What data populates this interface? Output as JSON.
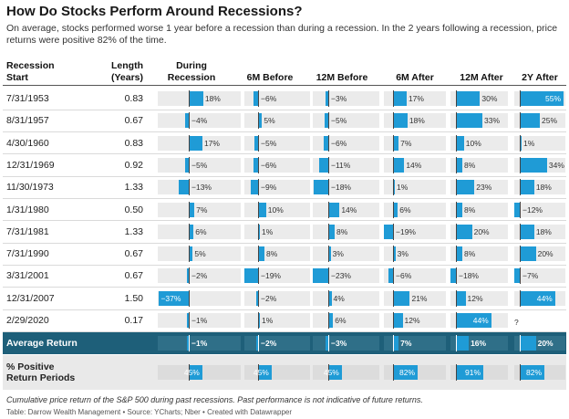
{
  "title": "How Do Stocks Perform Around Recessions?",
  "subtitle": "On average, stocks performed worse 1 year before a recession than during a recession. In the 2 years following a recession, price returns were positive 82% of the time.",
  "footnote": "Cumulative price return of the S&P 500 during past recessions. Past performance is not indicative of future returns.",
  "source": "Table: Darrow Wealth Management • Source: YCharts; Nber • Created with Datawrapper",
  "colors": {
    "bar": "#1f9bd6",
    "average_row": "#1e5f79",
    "bar_bg": "#ebebeb"
  },
  "headers": {
    "recession_start": "Recession\nStart",
    "length": "Length\n(Years)",
    "metrics": [
      "During\nRecession",
      "6M Before",
      "12M Before",
      "6M After",
      "12M After",
      "2Y After"
    ]
  },
  "chart_data": {
    "type": "table",
    "columns": [
      "During Recession",
      "6M Before",
      "12M Before",
      "6M After",
      "12M After",
      "2Y After"
    ],
    "rows": [
      {
        "start": "7/31/1953",
        "length": "0.83",
        "values": [
          18,
          -6,
          -3,
          17,
          30,
          55
        ],
        "labels": [
          "18%",
          "−6%",
          "−3%",
          "17%",
          "30%",
          "55%"
        ]
      },
      {
        "start": "8/31/1957",
        "length": "0.67",
        "values": [
          -4,
          5,
          -5,
          18,
          33,
          25
        ],
        "labels": [
          "−4%",
          "5%",
          "−5%",
          "18%",
          "33%",
          "25%"
        ]
      },
      {
        "start": "4/30/1960",
        "length": "0.83",
        "values": [
          17,
          -5,
          -6,
          7,
          10,
          1
        ],
        "labels": [
          "17%",
          "−5%",
          "−6%",
          "7%",
          "10%",
          "1%"
        ]
      },
      {
        "start": "12/31/1969",
        "length": "0.92",
        "values": [
          -5,
          -6,
          -11,
          14,
          8,
          34
        ],
        "labels": [
          "−5%",
          "−6%",
          "−11%",
          "14%",
          "8%",
          "34%"
        ]
      },
      {
        "start": "11/30/1973",
        "length": "1.33",
        "values": [
          -13,
          -9,
          -18,
          1,
          23,
          18
        ],
        "labels": [
          "−13%",
          "−9%",
          "−18%",
          "1%",
          "23%",
          "18%"
        ]
      },
      {
        "start": "1/31/1980",
        "length": "0.50",
        "values": [
          7,
          10,
          14,
          6,
          8,
          -12
        ],
        "labels": [
          "7%",
          "10%",
          "14%",
          "6%",
          "8%",
          "−12%"
        ]
      },
      {
        "start": "7/31/1981",
        "length": "1.33",
        "values": [
          6,
          1,
          8,
          -19,
          20,
          18
        ],
        "labels": [
          "6%",
          "1%",
          "8%",
          "−19%",
          "20%",
          "18%"
        ]
      },
      {
        "start": "7/31/1990",
        "length": "0.67",
        "values": [
          5,
          8,
          3,
          3,
          8,
          20
        ],
        "labels": [
          "5%",
          "8%",
          "3%",
          "3%",
          "8%",
          "20%"
        ]
      },
      {
        "start": "3/31/2001",
        "length": "0.67",
        "values": [
          -2,
          -19,
          -23,
          -6,
          -18,
          -7
        ],
        "labels": [
          "−2%",
          "−19%",
          "−23%",
          "−6%",
          "−18%",
          "−7%"
        ]
      },
      {
        "start": "12/31/2007",
        "length": "1.50",
        "values": [
          -37,
          -2,
          4,
          21,
          12,
          44
        ],
        "labels": [
          "−37%",
          "−2%",
          "4%",
          "21%",
          "12%",
          "44%"
        ]
      },
      {
        "start": "2/29/2020",
        "length": "0.17",
        "values": [
          -1,
          1,
          6,
          12,
          44,
          null
        ],
        "labels": [
          "−1%",
          "1%",
          "6%",
          "12%",
          "44%",
          "?"
        ]
      }
    ],
    "average": {
      "label": "Average Return",
      "values": [
        -1,
        -2,
        -3,
        7,
        16,
        20
      ],
      "labels": [
        "−1%",
        "−2%",
        "−3%",
        "7%",
        "16%",
        "20%"
      ]
    },
    "positive": {
      "label": "% Positive\nReturn Periods",
      "values": [
        45,
        45,
        45,
        82,
        91,
        82
      ],
      "labels": [
        "45%",
        "45%",
        "45%",
        "82%",
        "91%",
        "82%"
      ]
    }
  }
}
